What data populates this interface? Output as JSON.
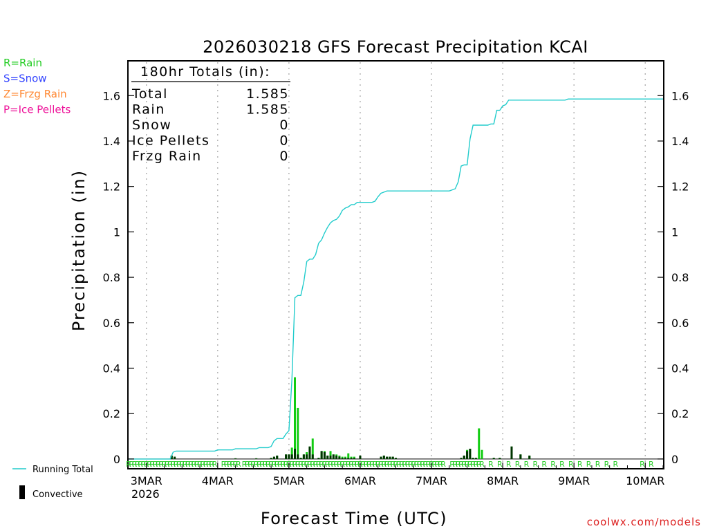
{
  "chart_data": {
    "type": "bar+line",
    "title": "2026030218 GFS Forecast Precipitation KCAI",
    "xlabel": "Forecast Time (UTC)",
    "ylabel": "Precipitation (in)",
    "ylim": [
      -0.04,
      1.75
    ],
    "yticks": [
      0,
      0.2,
      0.4,
      0.6,
      0.8,
      1,
      1.2,
      1.4,
      1.6
    ],
    "yticklabels": [
      "0",
      "0.2",
      "0.4",
      "0.6",
      "0.8",
      "1",
      "1.2",
      "1.4",
      "1.6"
    ],
    "xlim": [
      18,
      198
    ],
    "x_unit": "forecast hour since 2026-03-02 00Z",
    "xticks": [
      {
        "hour": 24,
        "label": "3MAR"
      },
      {
        "hour": 48,
        "label": "4MAR"
      },
      {
        "hour": 72,
        "label": "5MAR"
      },
      {
        "hour": 96,
        "label": "6MAR"
      },
      {
        "hour": 120,
        "label": "7MAR"
      },
      {
        "hour": 144,
        "label": "8MAR"
      },
      {
        "hour": 168,
        "label": "9MAR"
      },
      {
        "hour": 192,
        "label": "10MAR"
      }
    ],
    "year_label": "2026",
    "totals_box": {
      "heading": "180hr Totals (in):",
      "rows": [
        {
          "label": "Total",
          "value": "1.585"
        },
        {
          "label": "Rain",
          "value": "1.585"
        },
        {
          "label": "Snow",
          "value": "0"
        },
        {
          "label": "Ice Pellets",
          "value": "0"
        },
        {
          "label": "Frzg Rain",
          "value": "0"
        }
      ]
    },
    "type_legend": [
      {
        "text": "R=Rain",
        "color": "#22cc22"
      },
      {
        "text": "S=Snow",
        "color": "#3344ff"
      },
      {
        "text": "Z=Frzg Rain",
        "color": "#ff8833"
      },
      {
        "text": "P=Ice Pellets",
        "color": "#ee1199"
      }
    ],
    "series_legend": {
      "running": "Running Total",
      "convective": "Convective"
    },
    "colors": {
      "running": "#22cccc",
      "precip": "#11cc11",
      "convective": "#003300",
      "grid": "#aaaaaa",
      "ptype_rain": "#22cc22"
    },
    "bar_width_hours": 0.7,
    "precip_bars": [
      {
        "x": 32.5,
        "total": 0.015,
        "conv": 0.015
      },
      {
        "x": 33.5,
        "total": 0.01,
        "conv": 0.01
      },
      {
        "x": 54,
        "total": 0.003,
        "conv": 0.003
      },
      {
        "x": 61,
        "total": 0.003,
        "conv": 0.003
      },
      {
        "x": 66,
        "total": 0.005,
        "conv": 0.005
      },
      {
        "x": 67,
        "total": 0.01,
        "conv": 0.01
      },
      {
        "x": 68,
        "total": 0.015,
        "conv": 0.015
      },
      {
        "x": 71,
        "total": 0.02,
        "conv": 0.02
      },
      {
        "x": 72,
        "total": 0.02,
        "conv": 0.02
      },
      {
        "x": 73,
        "total": 0.05,
        "conv": 0.02
      },
      {
        "x": 74,
        "total": 0.36,
        "conv": 0.045
      },
      {
        "x": 75,
        "total": 0.225,
        "conv": 0.02
      },
      {
        "x": 76,
        "total": 0.005,
        "conv": 0.005
      },
      {
        "x": 77,
        "total": 0.02,
        "conv": 0.02
      },
      {
        "x": 78,
        "total": 0.03,
        "conv": 0.02
      },
      {
        "x": 79,
        "total": 0.055,
        "conv": 0.055
      },
      {
        "x": 80,
        "total": 0.09,
        "conv": 0.02
      },
      {
        "x": 82,
        "total": 0.005,
        "conv": 0.005
      },
      {
        "x": 83,
        "total": 0.035,
        "conv": 0.035
      },
      {
        "x": 84,
        "total": 0.035,
        "conv": 0.03
      },
      {
        "x": 85,
        "total": 0.015,
        "conv": 0.015
      },
      {
        "x": 86,
        "total": 0.035,
        "conv": 0.015
      },
      {
        "x": 87,
        "total": 0.02,
        "conv": 0.02
      },
      {
        "x": 88,
        "total": 0.02,
        "conv": 0.015
      },
      {
        "x": 89,
        "total": 0.015,
        "conv": 0.01
      },
      {
        "x": 90,
        "total": 0.01,
        "conv": 0.005
      },
      {
        "x": 91,
        "total": 0.01,
        "conv": 0.005
      },
      {
        "x": 92,
        "total": 0.025,
        "conv": 0.005
      },
      {
        "x": 93,
        "total": 0.01,
        "conv": 0.005
      },
      {
        "x": 94,
        "total": 0.01,
        "conv": 0.005
      },
      {
        "x": 96,
        "total": 0.015,
        "conv": 0.015
      },
      {
        "x": 103,
        "total": 0.01,
        "conv": 0.01
      },
      {
        "x": 104,
        "total": 0.015,
        "conv": 0.015
      },
      {
        "x": 105,
        "total": 0.01,
        "conv": 0.01
      },
      {
        "x": 106,
        "total": 0.01,
        "conv": 0.01
      },
      {
        "x": 107,
        "total": 0.01,
        "conv": 0.01
      },
      {
        "x": 108,
        "total": 0.005,
        "conv": 0.005
      },
      {
        "x": 130,
        "total": 0.005,
        "conv": 0.005
      },
      {
        "x": 131,
        "total": 0.015,
        "conv": 0.015
      },
      {
        "x": 132,
        "total": 0.04,
        "conv": 0.035
      },
      {
        "x": 133,
        "total": 0.045,
        "conv": 0.045
      },
      {
        "x": 134,
        "total": 0.005,
        "conv": 0.005
      },
      {
        "x": 135,
        "total": 0.005,
        "conv": 0.005
      },
      {
        "x": 136,
        "total": 0.135,
        "conv": 0.0
      },
      {
        "x": 137,
        "total": 0.04,
        "conv": 0.0
      },
      {
        "x": 141,
        "total": 0.005,
        "conv": 0.005
      },
      {
        "x": 143,
        "total": 0.005,
        "conv": 0.005
      },
      {
        "x": 147,
        "total": 0.055,
        "conv": 0.055
      },
      {
        "x": 150,
        "total": 0.02,
        "conv": 0.02
      },
      {
        "x": 153,
        "total": 0.015,
        "conv": 0.015
      }
    ],
    "running_total": [
      [
        18,
        0
      ],
      [
        32,
        0
      ],
      [
        33,
        0.03
      ],
      [
        34,
        0.035
      ],
      [
        47,
        0.035
      ],
      [
        48,
        0.04
      ],
      [
        53,
        0.04
      ],
      [
        54,
        0.045
      ],
      [
        61,
        0.045
      ],
      [
        62,
        0.05
      ],
      [
        65,
        0.05
      ],
      [
        66,
        0.055
      ],
      [
        67,
        0.08
      ],
      [
        68,
        0.09
      ],
      [
        70,
        0.09
      ],
      [
        71,
        0.11
      ],
      [
        72,
        0.125
      ],
      [
        73,
        0.35
      ],
      [
        74,
        0.71
      ],
      [
        75,
        0.72
      ],
      [
        76,
        0.72
      ],
      [
        77,
        0.78
      ],
      [
        78,
        0.87
      ],
      [
        79,
        0.88
      ],
      [
        80,
        0.88
      ],
      [
        81,
        0.9
      ],
      [
        82,
        0.95
      ],
      [
        83,
        0.965
      ],
      [
        84,
        0.995
      ],
      [
        85,
        1.02
      ],
      [
        86,
        1.04
      ],
      [
        87,
        1.05
      ],
      [
        88,
        1.055
      ],
      [
        89,
        1.07
      ],
      [
        90,
        1.095
      ],
      [
        91,
        1.105
      ],
      [
        92,
        1.11
      ],
      [
        93,
        1.12
      ],
      [
        94,
        1.12
      ],
      [
        95,
        1.13
      ],
      [
        100,
        1.13
      ],
      [
        101,
        1.135
      ],
      [
        102,
        1.155
      ],
      [
        103,
        1.17
      ],
      [
        104,
        1.175
      ],
      [
        105,
        1.18
      ],
      [
        126,
        1.18
      ],
      [
        127,
        1.185
      ],
      [
        128,
        1.19
      ],
      [
        129,
        1.22
      ],
      [
        130,
        1.29
      ],
      [
        131,
        1.295
      ],
      [
        132,
        1.295
      ],
      [
        133,
        1.41
      ],
      [
        134,
        1.47
      ],
      [
        135,
        1.47
      ],
      [
        139,
        1.47
      ],
      [
        140,
        1.475
      ],
      [
        141,
        1.475
      ],
      [
        142,
        1.535
      ],
      [
        143,
        1.535
      ],
      [
        144,
        1.555
      ],
      [
        145,
        1.56
      ],
      [
        146,
        1.58
      ],
      [
        165,
        1.58
      ],
      [
        166,
        1.585
      ],
      [
        198,
        1.585
      ]
    ],
    "ptype_markers": {
      "symbol": "R",
      "hours": [
        18,
        19,
        20,
        21,
        22,
        23,
        24,
        25,
        26,
        27,
        28,
        29,
        30,
        31,
        32,
        33,
        34,
        35,
        36,
        37,
        38,
        39,
        40,
        41,
        42,
        43,
        44,
        45,
        46,
        47,
        50,
        51,
        52,
        53,
        54,
        55,
        57,
        58,
        59,
        60,
        61,
        62,
        63,
        64,
        65,
        66,
        67,
        68,
        69,
        70,
        71,
        72,
        73,
        74,
        75,
        76,
        77,
        78,
        79,
        80,
        81,
        82,
        83,
        84,
        85,
        86,
        87,
        88,
        89,
        90,
        91,
        92,
        93,
        94,
        95,
        96,
        97,
        98,
        99,
        100,
        101,
        102,
        103,
        104,
        105,
        106,
        107,
        108,
        109,
        110,
        111,
        112,
        113,
        114,
        115,
        116,
        117,
        118,
        119,
        120,
        121,
        122,
        123,
        124,
        127,
        128,
        129,
        130,
        131,
        132,
        133,
        134,
        135,
        136,
        137,
        140,
        143,
        146,
        149,
        152,
        155,
        158,
        161,
        164,
        167,
        170,
        173,
        176,
        179,
        182,
        191,
        194
      ]
    }
  },
  "footer": {
    "credit": "coolwx.com/models"
  }
}
